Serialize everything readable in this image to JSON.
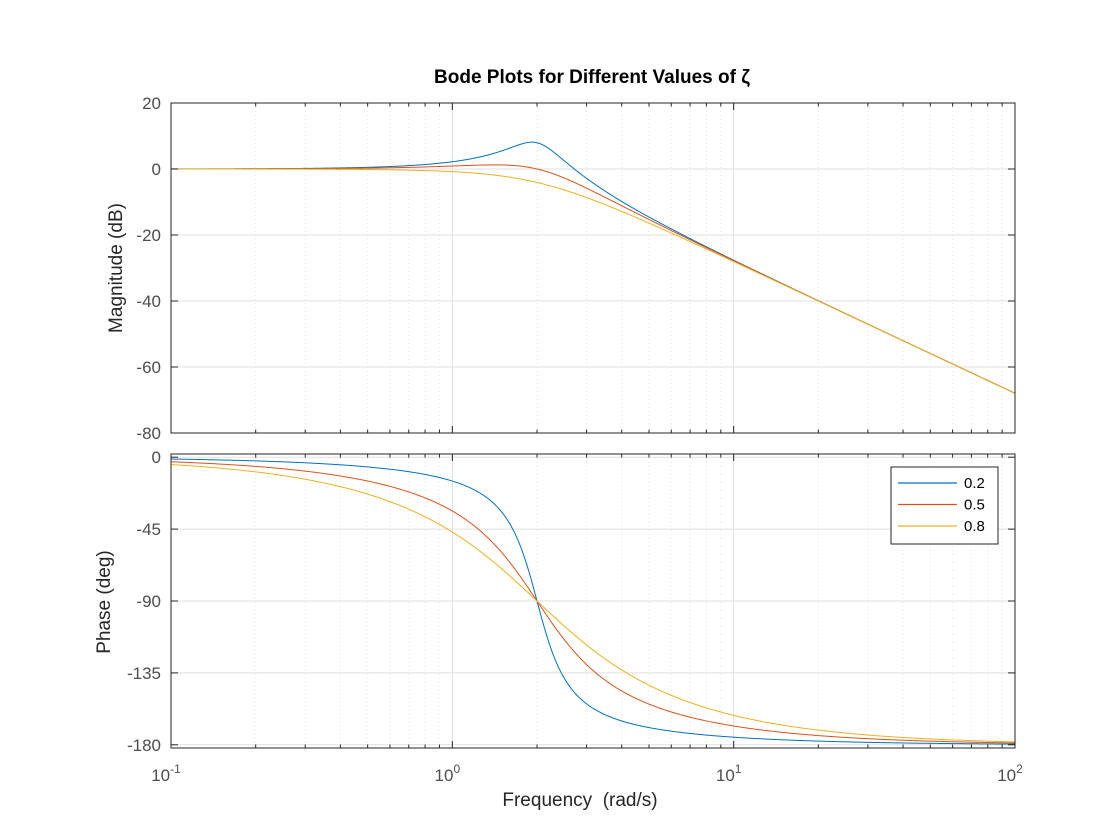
{
  "chart_data": {
    "type": "line",
    "title": "Bode Plots for Different Values of ζ",
    "xlabel": "Frequency  (rad/s)",
    "xscale": "log",
    "xlim": [
      0.1,
      100
    ],
    "x_ticks": [
      {
        "base": "10",
        "exp": "-1",
        "value": 0.1
      },
      {
        "base": "10",
        "exp": "0",
        "value": 1
      },
      {
        "base": "10",
        "exp": "1",
        "value": 10
      },
      {
        "base": "10",
        "exp": "2",
        "value": 100
      }
    ],
    "grid": true,
    "legend_placement": "top-right of phase plot",
    "natural_frequency": 2,
    "panels": [
      {
        "id": "magnitude",
        "ylabel": "Magnitude (dB)",
        "ylim": [
          -80,
          20
        ],
        "y_ticks": [
          "20",
          "0",
          "-20",
          "-40",
          "-60",
          "-80"
        ],
        "y_tick_values": [
          20,
          0,
          -20,
          -40,
          -60,
          -80
        ]
      },
      {
        "id": "phase",
        "ylabel": "Phase (deg)",
        "ylim": [
          -182,
          2
        ],
        "y_ticks": [
          "0",
          "-45",
          "-90",
          "-135",
          "-180"
        ],
        "y_tick_values": [
          0,
          -45,
          -90,
          -135,
          -180
        ]
      }
    ],
    "series": [
      {
        "name": "0.2",
        "zeta": 0.2,
        "color": "#0072BD",
        "magnitude_points": [
          [
            0.1,
            0.0
          ],
          [
            1,
            2.3
          ],
          [
            1.96,
            8.1
          ],
          [
            3,
            0.5
          ],
          [
            10,
            -27.7
          ],
          [
            100,
            -68.0
          ]
        ],
        "phase_points": [
          [
            0.1,
            -1.2
          ],
          [
            1,
            -15
          ],
          [
            2,
            -90
          ],
          [
            3,
            -154
          ],
          [
            10,
            -175
          ],
          [
            100,
            -179.8
          ]
        ]
      },
      {
        "name": "0.5",
        "zeta": 0.5,
        "color": "#D95319",
        "magnitude_points": [
          [
            0.1,
            0.0
          ],
          [
            1,
            1.0
          ],
          [
            1.41,
            1.25
          ],
          [
            2,
            0.0
          ],
          [
            10,
            -27.8
          ],
          [
            100,
            -68.0
          ]
        ],
        "phase_points": [
          [
            0.1,
            -2.9
          ],
          [
            1,
            -33.7
          ],
          [
            2,
            -90
          ],
          [
            3,
            -129
          ],
          [
            10,
            -168
          ],
          [
            100,
            -179.4
          ]
        ]
      },
      {
        "name": "0.8",
        "zeta": 0.8,
        "color": "#EDB120",
        "magnitude_points": [
          [
            0.1,
            0.0
          ],
          [
            1,
            -0.7
          ],
          [
            2,
            -4.1
          ],
          [
            10,
            -28.1
          ],
          [
            100,
            -68.0
          ]
        ],
        "phase_points": [
          [
            0.1,
            -4.6
          ],
          [
            1,
            -46.8
          ],
          [
            2,
            -90
          ],
          [
            3,
            -117
          ],
          [
            10,
            -162
          ],
          [
            100,
            -179.1
          ]
        ]
      }
    ]
  }
}
